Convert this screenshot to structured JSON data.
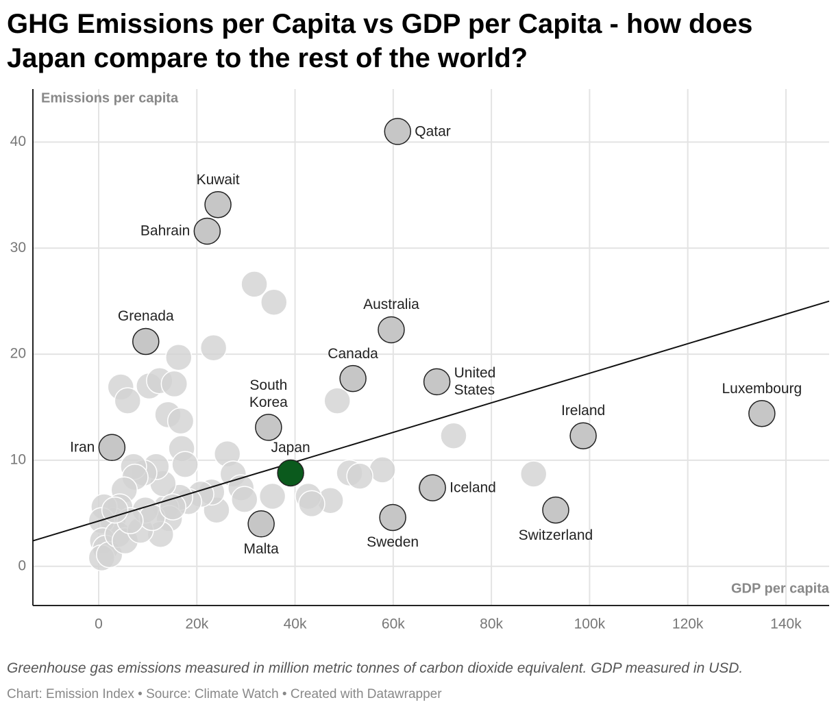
{
  "chart_data": {
    "type": "scatter",
    "title": "GHG Emissions per Capita vs GDP per Capita - how does Japan compare to the rest of the world?",
    "y_label": "Emissions per capita",
    "x_label": "GDP per capita",
    "note": "Greenhouse gas emissions measured in million metric tonnes of carbon dioxide equivalent. GDP measured in USD.",
    "source": "Chart: Emission Index • Source: Climate Watch • Created with Datawrapper",
    "xlim": [
      -13400,
      148800
    ],
    "ylim": [
      -3.7,
      45
    ],
    "xticks": [
      0,
      {
        "value": 20000,
        "label": "20k"
      },
      {
        "value": 40000,
        "label": "40k"
      },
      {
        "value": 60000,
        "label": "60k"
      },
      {
        "value": 80000,
        "label": "80k"
      },
      {
        "value": 100000,
        "label": "100k"
      },
      {
        "value": 120000,
        "label": "120k"
      },
      {
        "value": 140000,
        "label": "140k"
      }
    ],
    "yticks": [
      0,
      10,
      20,
      30,
      40
    ],
    "grid": true,
    "trendline": {
      "x": [
        -13400,
        148800
      ],
      "values": [
        2.4,
        25.0
      ],
      "color": "#111111"
    },
    "series": [
      {
        "color": "#d2d2d2",
        "x": [
          31700,
          35700,
          23400,
          16300,
          4500,
          5900,
          10300,
          12400,
          15400,
          14100,
          16700,
          16900,
          17600,
          26200,
          27400,
          48600,
          72300,
          88600,
          57800,
          51100,
          53200,
          47200,
          42700,
          43400,
          35400,
          29000,
          29700,
          24000,
          23000,
          20800,
          18300,
          16500,
          13700,
          14400,
          12600,
          13100,
          11700,
          9200,
          7100,
          7400,
          5200,
          4300,
          2900,
          1100,
          600,
          800,
          1400,
          600,
          2200,
          3900,
          5400,
          8500,
          9500,
          10900,
          6400,
          67600,
          15100,
          3300
        ],
        "values": [
          26.6,
          24.9,
          20.6,
          19.7,
          16.9,
          15.6,
          17.0,
          17.5,
          17.2,
          14.3,
          13.7,
          11.1,
          9.6,
          10.6,
          8.7,
          15.6,
          12.3,
          8.7,
          9.1,
          8.8,
          8.5,
          6.2,
          6.6,
          5.9,
          6.6,
          7.4,
          6.3,
          5.3,
          7.0,
          6.8,
          6.1,
          6.5,
          5.5,
          4.5,
          3.0,
          7.8,
          9.4,
          8.8,
          9.4,
          8.4,
          7.2,
          5.6,
          4.3,
          5.6,
          4.3,
          2.4,
          1.7,
          0.8,
          1.1,
          3.0,
          2.4,
          3.4,
          5.3,
          4.6,
          4.3,
          7.4,
          5.6,
          5.3
        ]
      },
      {
        "color": "#c6c6c6",
        "labels": [
          "Qatar",
          "Kuwait",
          "Bahrain",
          "Grenada",
          "Australia",
          "Canada",
          "United States",
          "South Korea",
          "Luxembourg",
          "Ireland",
          "Iran",
          "Iceland",
          "Switzerland",
          "Sweden",
          "Malta"
        ],
        "x": [
          60900,
          24300,
          22100,
          9600,
          59600,
          51800,
          68900,
          34600,
          135100,
          98700,
          2700,
          68000,
          93100,
          59900,
          33100
        ],
        "values": [
          41.0,
          34.1,
          31.6,
          21.2,
          22.3,
          17.7,
          17.4,
          13.1,
          14.4,
          12.3,
          11.2,
          7.4,
          5.3,
          4.6,
          4.0
        ]
      },
      {
        "color": "#0b5a1d",
        "labels": [
          "Japan"
        ],
        "x": [
          39100
        ],
        "values": [
          8.8
        ]
      }
    ]
  }
}
